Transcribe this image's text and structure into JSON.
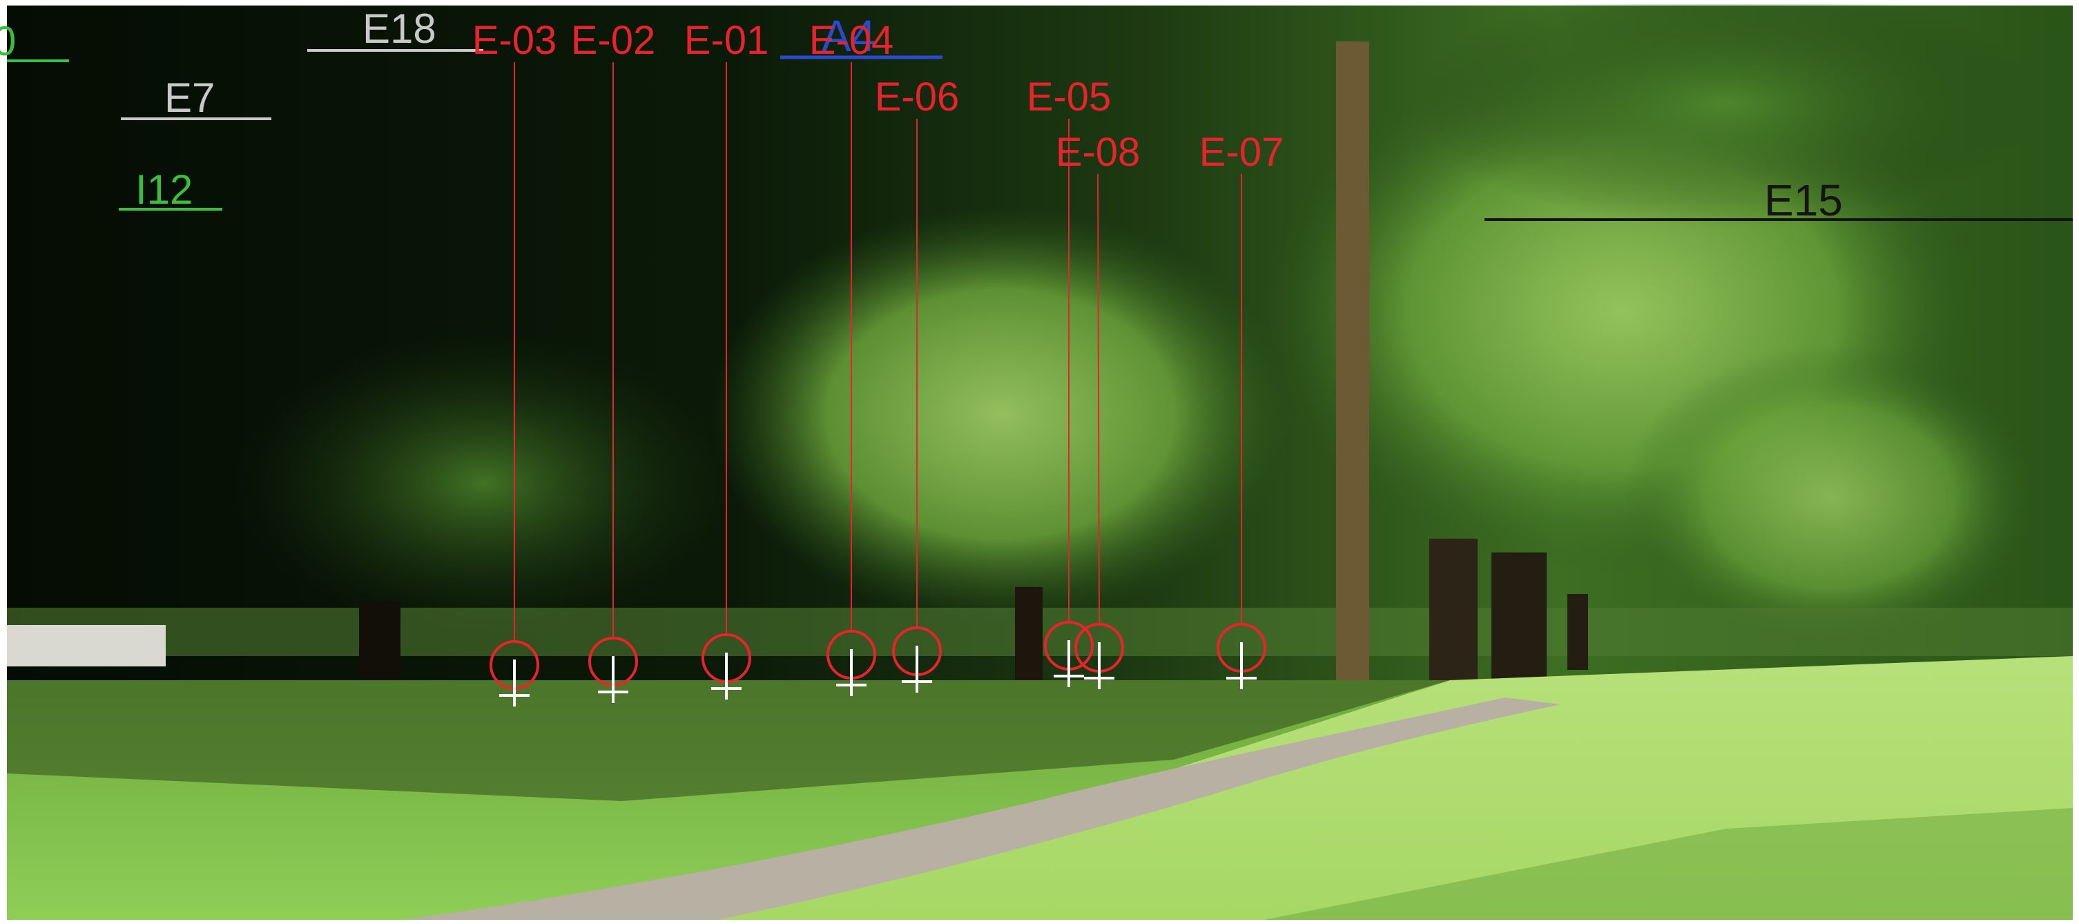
{
  "colors": {
    "marker_red": "#e8232d",
    "label_gray": "#c9c9c9",
    "label_green": "#3dbd3d",
    "label_blue": "#2a4bd1",
    "label_black": "#141414",
    "foliage_dark": "#0a1a08",
    "foliage_mid": "#2f5e1d",
    "foliage_light": "#8cc34a",
    "lawn": "#8fd05a",
    "path": "#b9b2a6"
  },
  "labels": {
    "e18": "E18",
    "e7": "E7",
    "i12": "I12",
    "a4": "A4",
    "e15": "E15",
    "partial_green": "0"
  },
  "tree_markers": [
    {
      "id": "E-03"
    },
    {
      "id": "E-02"
    },
    {
      "id": "E-01"
    },
    {
      "id": "E-04"
    },
    {
      "id": "E-06"
    },
    {
      "id": "E-05"
    },
    {
      "id": "E-08"
    },
    {
      "id": "E-07"
    }
  ]
}
